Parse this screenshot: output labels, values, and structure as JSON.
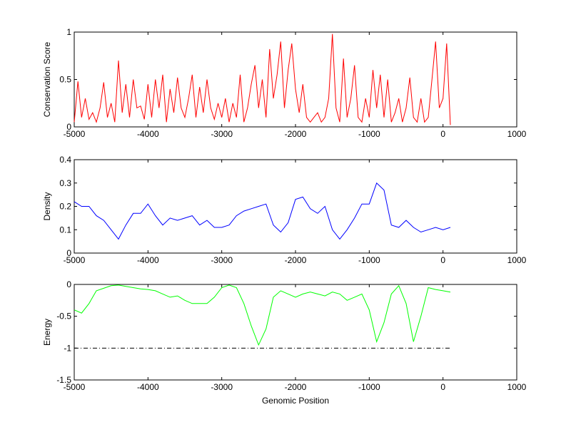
{
  "chart_data": [
    {
      "type": "line",
      "title": "",
      "xlabel": "",
      "ylabel": "Conservation Score",
      "xlim": [
        -5000,
        1000
      ],
      "ylim": [
        0,
        1
      ],
      "xticks": [
        "-5000",
        "-4000",
        "-3000",
        "-2000",
        "-1000",
        "0",
        "1000"
      ],
      "yticks": [
        "0",
        "0.5",
        "1"
      ],
      "ytick_values": [
        0,
        0.5,
        1
      ],
      "color": "#ff0000",
      "x_start": -5000,
      "x_step": 50,
      "values": [
        0.05,
        0.48,
        0.1,
        0.3,
        0.08,
        0.15,
        0.05,
        0.2,
        0.47,
        0.1,
        0.25,
        0.05,
        0.7,
        0.15,
        0.45,
        0.1,
        0.5,
        0.2,
        0.22,
        0.08,
        0.45,
        0.1,
        0.5,
        0.2,
        0.55,
        0.05,
        0.4,
        0.15,
        0.52,
        0.2,
        0.1,
        0.3,
        0.55,
        0.1,
        0.42,
        0.15,
        0.5,
        0.2,
        0.08,
        0.25,
        0.1,
        0.3,
        0.05,
        0.25,
        0.1,
        0.55,
        0.05,
        0.2,
        0.45,
        0.65,
        0.2,
        0.5,
        0.1,
        0.82,
        0.3,
        0.55,
        0.9,
        0.2,
        0.6,
        0.88,
        0.4,
        0.15,
        0.45,
        0.1,
        0.05,
        0.1,
        0.15,
        0.05,
        0.1,
        0.3,
        0.98,
        0.2,
        0.05,
        0.72,
        0.1,
        0.3,
        0.65,
        0.1,
        0.05,
        0.3,
        0.1,
        0.6,
        0.2,
        0.55,
        0.1,
        0.5,
        0.05,
        0.15,
        0.3,
        0.05,
        0.2,
        0.52,
        0.1,
        0.05,
        0.3,
        0.05,
        0.1,
        0.5,
        0.9,
        0.2,
        0.3,
        0.88,
        0.02
      ]
    },
    {
      "type": "line",
      "xlabel": "",
      "ylabel": "Density",
      "xlim": [
        -5000,
        1000
      ],
      "ylim": [
        0,
        0.4
      ],
      "xticks": [
        "-5000",
        "-4000",
        "-3000",
        "-2000",
        "-1000",
        "0",
        "1000"
      ],
      "yticks": [
        "0",
        "0.1",
        "0.2",
        "0.3",
        "0.4"
      ],
      "ytick_values": [
        0,
        0.1,
        0.2,
        0.3,
        0.4
      ],
      "color": "#0000ff",
      "x_start": -5000,
      "x_step": 100,
      "values": [
        0.22,
        0.2,
        0.2,
        0.16,
        0.14,
        0.1,
        0.06,
        0.12,
        0.17,
        0.17,
        0.21,
        0.16,
        0.12,
        0.15,
        0.14,
        0.15,
        0.16,
        0.12,
        0.14,
        0.11,
        0.11,
        0.12,
        0.16,
        0.18,
        0.19,
        0.2,
        0.21,
        0.12,
        0.09,
        0.13,
        0.23,
        0.24,
        0.19,
        0.17,
        0.2,
        0.1,
        0.06,
        0.1,
        0.15,
        0.21,
        0.21,
        0.3,
        0.27,
        0.12,
        0.11,
        0.14,
        0.11,
        0.09,
        0.1,
        0.11,
        0.1,
        0.11
      ]
    },
    {
      "type": "line",
      "xlabel": "Genomic Position",
      "ylabel": "Energy",
      "xlim": [
        -5000,
        1000
      ],
      "ylim": [
        -1.5,
        0
      ],
      "xticks": [
        "-5000",
        "-4000",
        "-3000",
        "-2000",
        "-1000",
        "0",
        "1000"
      ],
      "yticks": [
        "-1.5",
        "-1",
        "-0.5",
        "0"
      ],
      "ytick_values": [
        -1.5,
        -1,
        -0.5,
        0
      ],
      "color": "#00ff00",
      "x_start": -5000,
      "x_step": 100,
      "values": [
        -0.4,
        -0.45,
        -0.3,
        -0.1,
        -0.06,
        -0.02,
        -0.01,
        -0.03,
        -0.05,
        -0.07,
        -0.08,
        -0.1,
        -0.15,
        -0.2,
        -0.18,
        -0.25,
        -0.3,
        -0.3,
        -0.3,
        -0.2,
        -0.05,
        -0.01,
        -0.05,
        -0.3,
        -0.65,
        -0.95,
        -0.7,
        -0.2,
        -0.1,
        -0.15,
        -0.2,
        -0.15,
        -0.12,
        -0.15,
        -0.18,
        -0.12,
        -0.15,
        -0.25,
        -0.2,
        -0.15,
        -0.4,
        -0.9,
        -0.6,
        -0.15,
        -0.02,
        -0.3,
        -0.9,
        -0.5,
        -0.05,
        -0.08,
        -0.1,
        -0.12
      ],
      "reference_line": {
        "y": -1,
        "x_range": [
          -5000,
          100
        ],
        "style": "dash-dot",
        "color": "#000000"
      }
    }
  ]
}
